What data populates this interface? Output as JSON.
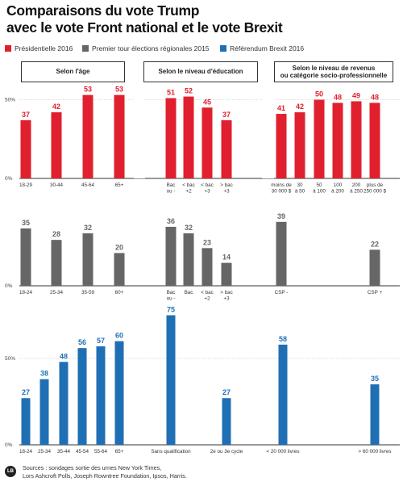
{
  "title_line1": "Comparaisons du vote Trump",
  "title_line2": "avec le vote Front national et le vote Brexit",
  "legend": [
    {
      "label": "Présidentielle 2016",
      "color": "#e0202e"
    },
    {
      "label": "Premier tour élections régionales 2015",
      "color": "#666666"
    },
    {
      "label": "Référendum Brexit 2016",
      "color": "#1f6fb4"
    }
  ],
  "sections": {
    "age": "Selon l'âge",
    "education": "Selon le niveau d'éducation",
    "income_line1": "Selon le niveau de revenus",
    "income_line2": "ou catégorie socio-professionnelle"
  },
  "source_line1": "Sources : sondages sortie des urnes New York Times,",
  "source_line2": "Lors Ashcroft Polls, Joseph Rowntree Foundation, Ipsos, Harris.",
  "chart_data": [
    {
      "type": "bar",
      "name": "Présidentielle 2016",
      "color": "#e0202e",
      "axis_ticks": [
        "0%",
        "50%"
      ],
      "ylim": [
        0,
        100
      ],
      "categories": [
        [
          "18-29"
        ],
        [
          "30-44"
        ],
        [
          "45-64"
        ],
        [
          "65+"
        ],
        [
          "Bac",
          "ou -"
        ],
        [
          "< bac",
          "+2"
        ],
        [
          "< bac",
          "+3"
        ],
        [
          "> bac",
          "+3"
        ],
        [
          "moins de",
          "30 000 $"
        ],
        [
          "30",
          "à 50"
        ],
        [
          "50",
          "à 100"
        ],
        [
          "100",
          "à 200"
        ],
        [
          "200",
          "à 250"
        ],
        [
          "plus de",
          "250 000 $"
        ]
      ],
      "values": [
        37,
        42,
        53,
        53,
        51,
        52,
        45,
        37,
        41,
        42,
        50,
        48,
        49,
        48
      ]
    },
    {
      "type": "bar",
      "name": "Premier tour élections régionales 2015",
      "color": "#666666",
      "axis_ticks": [
        "0%"
      ],
      "ylim": [
        0,
        100
      ],
      "categories": [
        [
          "18-24"
        ],
        [
          "25-34"
        ],
        [
          "35-59"
        ],
        [
          "60+"
        ],
        [
          "Bac",
          "ou -"
        ],
        [
          "Bac"
        ],
        [
          "< bac",
          "+2"
        ],
        [
          "> bac",
          "+3"
        ],
        [
          "CSP -"
        ],
        [
          "CSP +"
        ]
      ],
      "values": [
        35,
        28,
        32,
        20,
        36,
        32,
        23,
        14,
        39,
        22
      ]
    },
    {
      "type": "bar",
      "name": "Référendum Brexit 2016",
      "color": "#1f6fb4",
      "axis_ticks": [
        "0%",
        "50%"
      ],
      "ylim": [
        0,
        100
      ],
      "categories": [
        [
          "18-24"
        ],
        [
          "25-34"
        ],
        [
          "35-44"
        ],
        [
          "45-54"
        ],
        [
          "55-64"
        ],
        [
          "65+"
        ],
        [
          "Sans qualification"
        ],
        [
          "2e ou 3e cycle"
        ],
        [
          "< 20 000 livres"
        ],
        [
          "> 60 000 livres"
        ]
      ],
      "values": [
        27,
        38,
        48,
        56,
        57,
        60,
        75,
        27,
        58,
        35
      ]
    }
  ]
}
